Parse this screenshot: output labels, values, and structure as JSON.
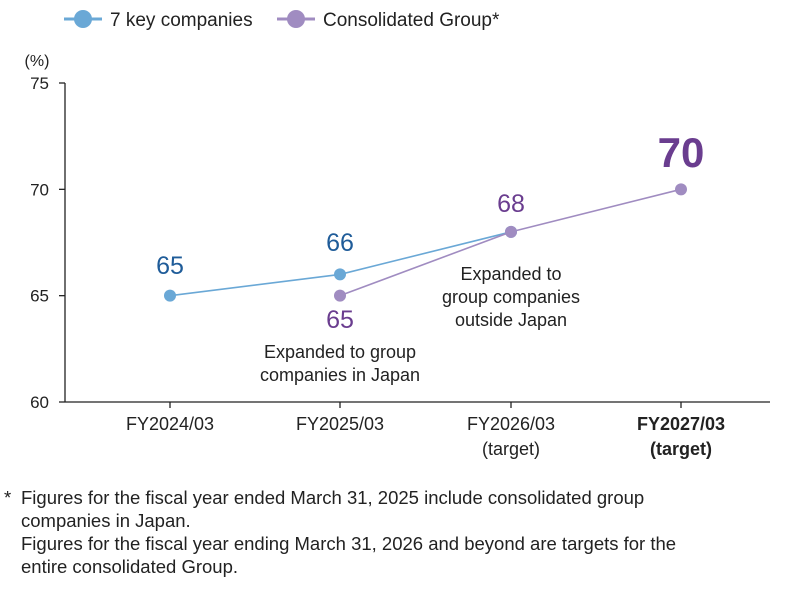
{
  "chart_data": {
    "type": "line",
    "ylabel": "(%)",
    "ylim": [
      60,
      75
    ],
    "yticks": [
      60,
      65,
      70,
      75
    ],
    "categories": [
      {
        "lines": [
          "FY2024/03"
        ],
        "bold": false
      },
      {
        "lines": [
          "FY2025/03"
        ],
        "bold": false
      },
      {
        "lines": [
          "FY2026/03",
          "(target)"
        ],
        "bold": false
      },
      {
        "lines": [
          "FY2027/03",
          "(target)"
        ],
        "bold": true
      }
    ],
    "legend_position": "top-left",
    "grid": false,
    "series": [
      {
        "name": "7 key companies",
        "color": "#6aa8d6",
        "label_color": "#1f5c99",
        "values": [
          65,
          66,
          68,
          null
        ],
        "labels": [
          "65",
          "66",
          "",
          ""
        ]
      },
      {
        "name": "Consolidated Group*",
        "color": "#a08cc1",
        "label_color": "#6a3d8f",
        "values": [
          null,
          65,
          68,
          70
        ],
        "labels": [
          "",
          "65",
          "68",
          "70"
        ]
      }
    ],
    "annotations": [
      {
        "lines": [
          "Expanded to group",
          "companies in Japan"
        ]
      },
      {
        "lines": [
          "Expanded to",
          "group companies",
          "outside Japan"
        ]
      }
    ]
  },
  "footnote": {
    "marker": "*",
    "lines": [
      "Figures for the fiscal year ended March 31, 2025 include consolidated group",
      "companies in Japan.",
      "Figures for the fiscal year ending March 31, 2026 and beyond are targets for the",
      "entire consolidated Group."
    ]
  }
}
